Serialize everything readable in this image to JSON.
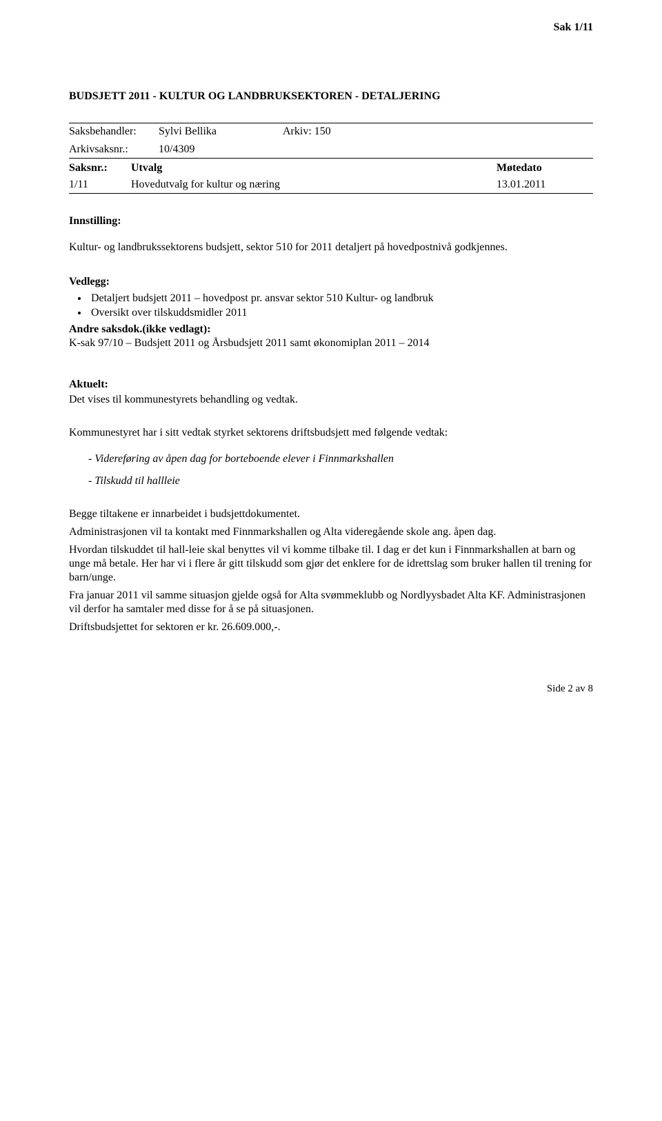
{
  "header": {
    "sak": "Sak  1/11"
  },
  "title": "BUDSJETT 2011 - KULTUR OG LANDBRUKSEKTOREN - DETALJERING",
  "meta": {
    "saksbehandler_label": "Saksbehandler:",
    "saksbehandler_value": "Sylvi Bellika",
    "arkiv_label": "Arkiv: 150",
    "arkivsaksnr_label": "Arkivsaksnr.:",
    "arkivsaksnr_value": "10/4309"
  },
  "meeting": {
    "h_saksnr": "Saksnr.:",
    "h_utvalg": "Utvalg",
    "h_motedato": "Møtedato",
    "r_saksnr": "1/11",
    "r_utvalg": "Hovedutvalg for kultur og næring",
    "r_motedato": "13.01.2011"
  },
  "innstilling": {
    "label": "Innstilling:",
    "text": "Kultur- og landbrukssektorens budsjett, sektor 510 for 2011 detaljert på hovedpostnivå godkjennes."
  },
  "vedlegg": {
    "label": "Vedlegg:",
    "item1": "Detaljert budsjett 2011 – hovedpost pr. ansvar sektor 510 Kultur- og landbruk",
    "item2": "Oversikt over tilskuddsmidler 2011",
    "andre_label": "Andre saksdok.(ikke vedlagt):",
    "andre_text": "K-sak 97/10 – Budsjett 2011 og Årsbudsjett 2011 samt økonomiplan 2011 – 2014"
  },
  "aktuelt": {
    "label": "Aktuelt:",
    "line": "Det vises til kommunestyrets behandling og vedtak.",
    "intro": "Kommunestyret har i sitt vedtak styrket sektorens driftsbudsjett med følgende vedtak:",
    "i1": "- Videreføring av åpen dag for borteboende elever i Finnmarkshallen",
    "i2": "- Tilskudd til hallleie",
    "p1": "Begge tiltakene er innarbeidet i budsjettdokumentet.",
    "p2": "Administrasjonen vil ta kontakt med Finnmarkshallen og Alta videregående skole ang. åpen dag.",
    "p3": "Hvordan tilskuddet til hall-leie skal benyttes vil vi komme tilbake til.  I dag er det kun i Finnmarkshallen at barn og unge må betale.  Her har vi i flere år gitt tilskudd som gjør det enklere for de idrettslag som bruker hallen til trening for barn/unge.",
    "p4": "Fra januar 2011 vil samme situasjon gjelde også for Alta svømmeklubb og Nordlyysbadet Alta KF.  Administrasjonen vil derfor ha samtaler med disse for å se på situasjonen.",
    "p5": "Driftsbudsjettet for sektoren er kr. 26.609.000,-."
  },
  "footer": "Side 2 av 8"
}
